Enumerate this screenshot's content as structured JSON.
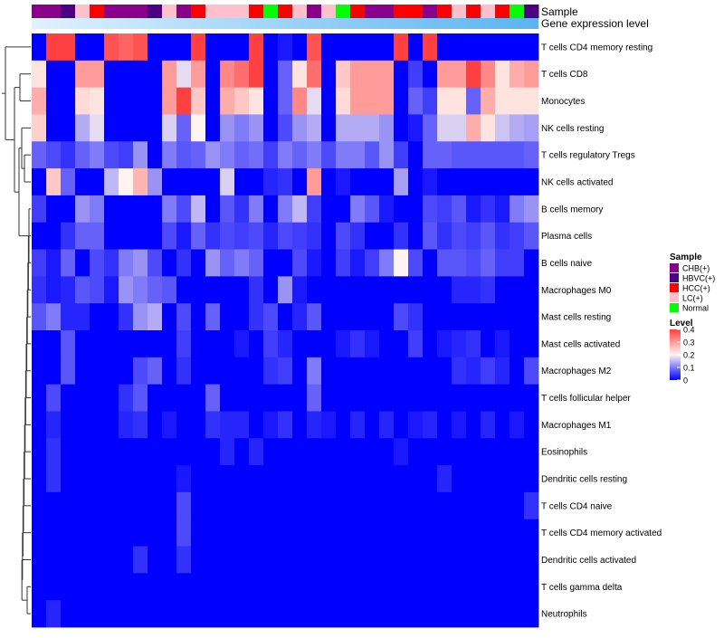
{
  "chart_data": {
    "type": "heatmap",
    "title": "",
    "annotation_tracks": [
      "Sample",
      "Gene expression level"
    ],
    "sample_colors": {
      "CHB(+)": "#8B008B",
      "HBVC(+)": "#4B0082",
      "HCC(+)": "#FF0000",
      "LC(+)": "#FFC0CB",
      "Normal": "#00FF00"
    },
    "samples": [
      "CHB(+)",
      "CHB(+)",
      "HBVC(+)",
      "LC(+)",
      "HCC(+)",
      "CHB(+)",
      "CHB(+)",
      "CHB(+)",
      "HBVC(+)",
      "LC(+)",
      "CHB(+)",
      "HCC(+)",
      "LC(+)",
      "LC(+)",
      "LC(+)",
      "HCC(+)",
      "Normal",
      "HCC(+)",
      "LC(+)",
      "CHB(+)",
      "LC(+)",
      "Normal",
      "HCC(+)",
      "CHB(+)",
      "CHB(+)",
      "HCC(+)",
      "HCC(+)",
      "CHB(+)",
      "HCC(+)",
      "LC(+)",
      "HCC(+)",
      "LC(+)",
      "HCC(+)",
      "Normal",
      "HBVC(+)"
    ],
    "gene_expression_gradient": [
      "#E0F2FF",
      "#5AB4F0"
    ],
    "rows": [
      "T cells CD4 memory resting",
      "T cells CD8",
      "Monocytes",
      "NK cells resting",
      "T cells regulatory  Tregs",
      "NK cells activated",
      "B cells memory",
      "Plasma cells",
      "B cells naive",
      "Macrophages M0",
      "Mast cells resting",
      "Mast cells activated",
      "Macrophages M2",
      "T cells follicular helper",
      "Macrophages M1",
      "Eosinophils",
      "Dendritic cells resting",
      "T cells CD4 naive",
      "T cells CD4 memory activated",
      "Dendritic cells activated",
      "T cells gamma delta",
      "Neutrophils"
    ],
    "values": [
      [
        0.0,
        0.4,
        0.4,
        0.0,
        0.0,
        0.38,
        0.36,
        0.38,
        0.0,
        0.0,
        0.0,
        0.4,
        0.0,
        0.0,
        0.0,
        0.4,
        0.0,
        0.02,
        0.0,
        0.38,
        0.0,
        0.0,
        0.0,
        0.0,
        0.0,
        0.4,
        0.0,
        0.4,
        0.0,
        0.0,
        0.0,
        0.0,
        0.0,
        0.0,
        0.0
      ],
      [
        0.22,
        0.0,
        0.0,
        0.3,
        0.3,
        0.0,
        0.0,
        0.0,
        0.0,
        0.3,
        0.18,
        0.3,
        0.0,
        0.32,
        0.35,
        0.4,
        0.0,
        0.08,
        0.22,
        0.35,
        0.0,
        0.25,
        0.3,
        0.3,
        0.3,
        0.0,
        0.05,
        0.0,
        0.3,
        0.3,
        0.4,
        0.32,
        0.22,
        0.28,
        0.3
      ],
      [
        0.28,
        0.0,
        0.0,
        0.23,
        0.22,
        0.0,
        0.0,
        0.0,
        0.0,
        0.3,
        0.4,
        0.25,
        0.0,
        0.28,
        0.25,
        0.22,
        0.0,
        0.08,
        0.32,
        0.18,
        0.0,
        0.23,
        0.3,
        0.3,
        0.3,
        0.0,
        0.08,
        0.05,
        0.22,
        0.22,
        0.08,
        0.28,
        0.22,
        0.22,
        0.22
      ],
      [
        0.24,
        0.0,
        0.0,
        0.14,
        0.18,
        0.0,
        0.0,
        0.0,
        0.0,
        0.17,
        0.08,
        0.2,
        0.0,
        0.12,
        0.1,
        0.12,
        0.0,
        0.06,
        0.12,
        0.14,
        0.0,
        0.14,
        0.14,
        0.14,
        0.12,
        0.0,
        0.02,
        0.08,
        0.17,
        0.17,
        0.28,
        0.22,
        0.16,
        0.14,
        0.13
      ],
      [
        0.08,
        0.06,
        0.04,
        0.08,
        0.1,
        0.06,
        0.05,
        0.12,
        0.0,
        0.1,
        0.07,
        0.08,
        0.12,
        0.1,
        0.08,
        0.09,
        0.05,
        0.1,
        0.08,
        0.1,
        0.06,
        0.1,
        0.1,
        0.07,
        0.12,
        0.05,
        0.0,
        0.08,
        0.08,
        0.07,
        0.07,
        0.07,
        0.07,
        0.07,
        0.08
      ],
      [
        0.0,
        0.25,
        0.08,
        0.0,
        0.0,
        0.15,
        0.2,
        0.27,
        0.12,
        0.0,
        0.0,
        0.0,
        0.0,
        0.17,
        0.0,
        0.0,
        0.03,
        0.04,
        0.0,
        0.3,
        0.0,
        0.02,
        0.0,
        0.0,
        0.0,
        0.13,
        0.0,
        0.02,
        0.0,
        0.0,
        0.0,
        0.0,
        0.0,
        0.0,
        0.0
      ],
      [
        0.05,
        0.0,
        0.0,
        0.12,
        0.1,
        0.0,
        0.0,
        0.0,
        0.0,
        0.1,
        0.06,
        0.15,
        0.0,
        0.07,
        0.04,
        0.1,
        0.0,
        0.1,
        0.15,
        0.05,
        0.0,
        0.0,
        0.1,
        0.07,
        0.02,
        0.0,
        0.0,
        0.06,
        0.05,
        0.07,
        0.02,
        0.04,
        0.02,
        0.1,
        0.12
      ],
      [
        0.0,
        0.0,
        0.04,
        0.08,
        0.08,
        0.0,
        0.0,
        0.0,
        0.0,
        0.06,
        0.02,
        0.08,
        0.04,
        0.06,
        0.05,
        0.06,
        0.03,
        0.06,
        0.05,
        0.04,
        0.0,
        0.06,
        0.04,
        0.0,
        0.0,
        0.04,
        0.0,
        0.07,
        0.04,
        0.06,
        0.05,
        0.07,
        0.04,
        0.05,
        0.07
      ],
      [
        0.05,
        0.02,
        0.08,
        0.0,
        0.06,
        0.04,
        0.1,
        0.12,
        0.06,
        0.0,
        0.04,
        0.0,
        0.12,
        0.08,
        0.1,
        0.08,
        0.0,
        0.0,
        0.06,
        0.02,
        0.0,
        0.05,
        0.02,
        0.05,
        0.1,
        0.2,
        0.06,
        0.0,
        0.07,
        0.07,
        0.06,
        0.08,
        0.05,
        0.05,
        0.0
      ],
      [
        0.04,
        0.02,
        0.03,
        0.07,
        0.06,
        0.02,
        0.12,
        0.1,
        0.08,
        0.07,
        0.0,
        0.0,
        0.0,
        0.0,
        0.0,
        0.04,
        0.0,
        0.12,
        0.02,
        0.0,
        0.0,
        0.0,
        0.0,
        0.0,
        0.0,
        0.0,
        0.0,
        0.0,
        0.0,
        0.03,
        0.03,
        0.04,
        0.0,
        0.0,
        0.0
      ],
      [
        0.07,
        0.1,
        0.03,
        0.03,
        0.0,
        0.0,
        0.04,
        0.12,
        0.14,
        0.0,
        0.06,
        0.0,
        0.08,
        0.0,
        0.0,
        0.04,
        0.06,
        0.0,
        0.03,
        0.07,
        0.0,
        0.0,
        0.0,
        0.0,
        0.0,
        0.06,
        0.04,
        0.0,
        0.0,
        0.0,
        0.0,
        0.0,
        0.0,
        0.0,
        0.0
      ],
      [
        0.0,
        0.0,
        0.07,
        0.0,
        0.0,
        0.0,
        0.0,
        0.0,
        0.0,
        0.0,
        0.05,
        0.0,
        0.0,
        0.0,
        0.02,
        0.0,
        0.05,
        0.03,
        0.0,
        0.0,
        0.0,
        0.02,
        0.04,
        0.02,
        0.0,
        0.0,
        0.05,
        0.0,
        0.02,
        0.03,
        0.04,
        0.0,
        0.02,
        0.0,
        0.0
      ],
      [
        0.0,
        0.0,
        0.07,
        0.0,
        0.0,
        0.0,
        0.0,
        0.06,
        0.08,
        0.0,
        0.04,
        0.0,
        0.0,
        0.0,
        0.0,
        0.0,
        0.04,
        0.05,
        0.0,
        0.1,
        0.0,
        0.0,
        0.0,
        0.0,
        0.0,
        0.0,
        0.0,
        0.0,
        0.0,
        0.04,
        0.03,
        0.05,
        0.03,
        0.0,
        0.06
      ],
      [
        0.0,
        0.06,
        0.0,
        0.0,
        0.0,
        0.0,
        0.04,
        0.07,
        0.0,
        0.0,
        0.0,
        0.0,
        0.08,
        0.0,
        0.0,
        0.0,
        0.0,
        0.0,
        0.0,
        0.08,
        0.0,
        0.0,
        0.0,
        0.0,
        0.0,
        0.0,
        0.0,
        0.0,
        0.0,
        0.0,
        0.0,
        0.0,
        0.0,
        0.0,
        0.0
      ],
      [
        0.0,
        0.03,
        0.0,
        0.0,
        0.0,
        0.0,
        0.03,
        0.04,
        0.0,
        0.02,
        0.0,
        0.0,
        0.04,
        0.03,
        0.03,
        0.0,
        0.02,
        0.04,
        0.0,
        0.03,
        0.02,
        0.0,
        0.03,
        0.0,
        0.03,
        0.0,
        0.02,
        0.03,
        0.0,
        0.02,
        0.0,
        0.03,
        0.0,
        0.02,
        0.0
      ],
      [
        0.0,
        0.04,
        0.0,
        0.0,
        0.0,
        0.0,
        0.0,
        0.0,
        0.0,
        0.0,
        0.0,
        0.0,
        0.0,
        0.03,
        0.0,
        0.03,
        0.0,
        0.0,
        0.0,
        0.0,
        0.0,
        0.0,
        0.0,
        0.0,
        0.0,
        0.02,
        0.0,
        0.0,
        0.0,
        0.0,
        0.0,
        0.0,
        0.0,
        0.0,
        0.0
      ],
      [
        0.0,
        0.04,
        0.0,
        0.0,
        0.0,
        0.0,
        0.0,
        0.0,
        0.0,
        0.0,
        0.02,
        0.0,
        0.0,
        0.0,
        0.0,
        0.0,
        0.0,
        0.0,
        0.0,
        0.0,
        0.0,
        0.0,
        0.0,
        0.0,
        0.0,
        0.0,
        0.0,
        0.0,
        0.03,
        0.0,
        0.0,
        0.0,
        0.0,
        0.0,
        0.0
      ],
      [
        0.0,
        0.0,
        0.0,
        0.0,
        0.0,
        0.0,
        0.0,
        0.0,
        0.0,
        0.0,
        0.06,
        0.0,
        0.0,
        0.0,
        0.0,
        0.0,
        0.0,
        0.0,
        0.0,
        0.0,
        0.0,
        0.0,
        0.0,
        0.0,
        0.0,
        0.0,
        0.0,
        0.0,
        0.0,
        0.0,
        0.0,
        0.0,
        0.0,
        0.0,
        0.04
      ],
      [
        0.0,
        0.0,
        0.0,
        0.0,
        0.0,
        0.0,
        0.0,
        0.0,
        0.0,
        0.0,
        0.06,
        0.0,
        0.0,
        0.0,
        0.0,
        0.0,
        0.0,
        0.0,
        0.0,
        0.0,
        0.0,
        0.0,
        0.0,
        0.0,
        0.0,
        0.0,
        0.0,
        0.0,
        0.0,
        0.0,
        0.0,
        0.0,
        0.0,
        0.0,
        0.0
      ],
      [
        0.0,
        0.0,
        0.0,
        0.0,
        0.0,
        0.0,
        0.0,
        0.04,
        0.0,
        0.0,
        0.04,
        0.0,
        0.0,
        0.0,
        0.0,
        0.0,
        0.0,
        0.0,
        0.0,
        0.0,
        0.0,
        0.0,
        0.0,
        0.0,
        0.0,
        0.0,
        0.0,
        0.0,
        0.0,
        0.0,
        0.0,
        0.0,
        0.0,
        0.0,
        0.0
      ],
      [
        0.0,
        0.0,
        0.0,
        0.0,
        0.0,
        0.0,
        0.0,
        0.0,
        0.0,
        0.0,
        0.0,
        0.0,
        0.0,
        0.0,
        0.0,
        0.0,
        0.0,
        0.0,
        0.0,
        0.0,
        0.0,
        0.0,
        0.0,
        0.0,
        0.0,
        0.0,
        0.0,
        0.0,
        0.0,
        0.0,
        0.0,
        0.0,
        0.0,
        0.0,
        0.0
      ],
      [
        0.0,
        0.03,
        0.0,
        0.0,
        0.0,
        0.0,
        0.0,
        0.0,
        0.0,
        0.0,
        0.0,
        0.0,
        0.0,
        0.0,
        0.0,
        0.0,
        0.0,
        0.0,
        0.0,
        0.0,
        0.0,
        0.0,
        0.0,
        0.0,
        0.0,
        0.0,
        0.0,
        0.0,
        0.0,
        0.0,
        0.0,
        0.0,
        0.0,
        0.0,
        0.0
      ]
    ],
    "color_scale": {
      "min": 0,
      "max": 0.4,
      "low": "#0000FF",
      "mid": "#FFF5F0",
      "high": "#FF4040"
    },
    "legend": {
      "sample_title": "Sample",
      "sample_entries": [
        "CHB(+)",
        "HBVC(+)",
        "HCC(+)",
        "LC(+)",
        "Normal"
      ],
      "level_title": "Level",
      "level_ticks": [
        "0.4",
        "0.3",
        "0.2",
        "0.1",
        "0"
      ],
      "level_tick_values": [
        0.4,
        0.3,
        0.2,
        0.1,
        0
      ],
      "placement": "right"
    },
    "row_dendrogram": true
  }
}
